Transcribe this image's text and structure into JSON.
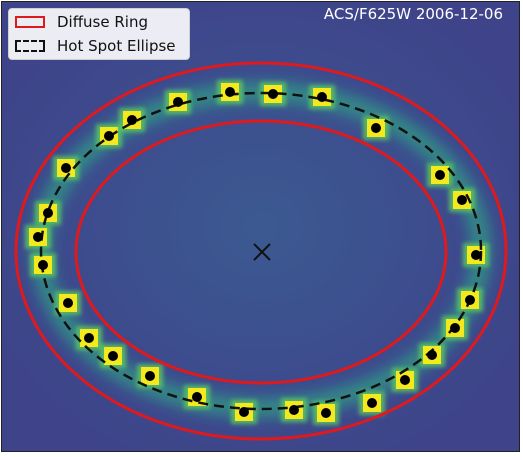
{
  "legend": {
    "diffuse_ring_label": "Diffuse Ring",
    "hot_spot_label": "Hot Spot Ellipse"
  },
  "observation_label": "ACS/F625W 2006-12-06",
  "colors": {
    "background": "#3f4a8c",
    "diffuse_ring": "#e0191c",
    "hot_spot_ellipse": "#111111",
    "hot_spot_markers": "#000000",
    "hot_spot_glow": "#f4e91d",
    "center_marker": "#111111"
  },
  "icons": {
    "center_marker": "x-cross-icon",
    "hot_spot": "dot-icon"
  }
}
